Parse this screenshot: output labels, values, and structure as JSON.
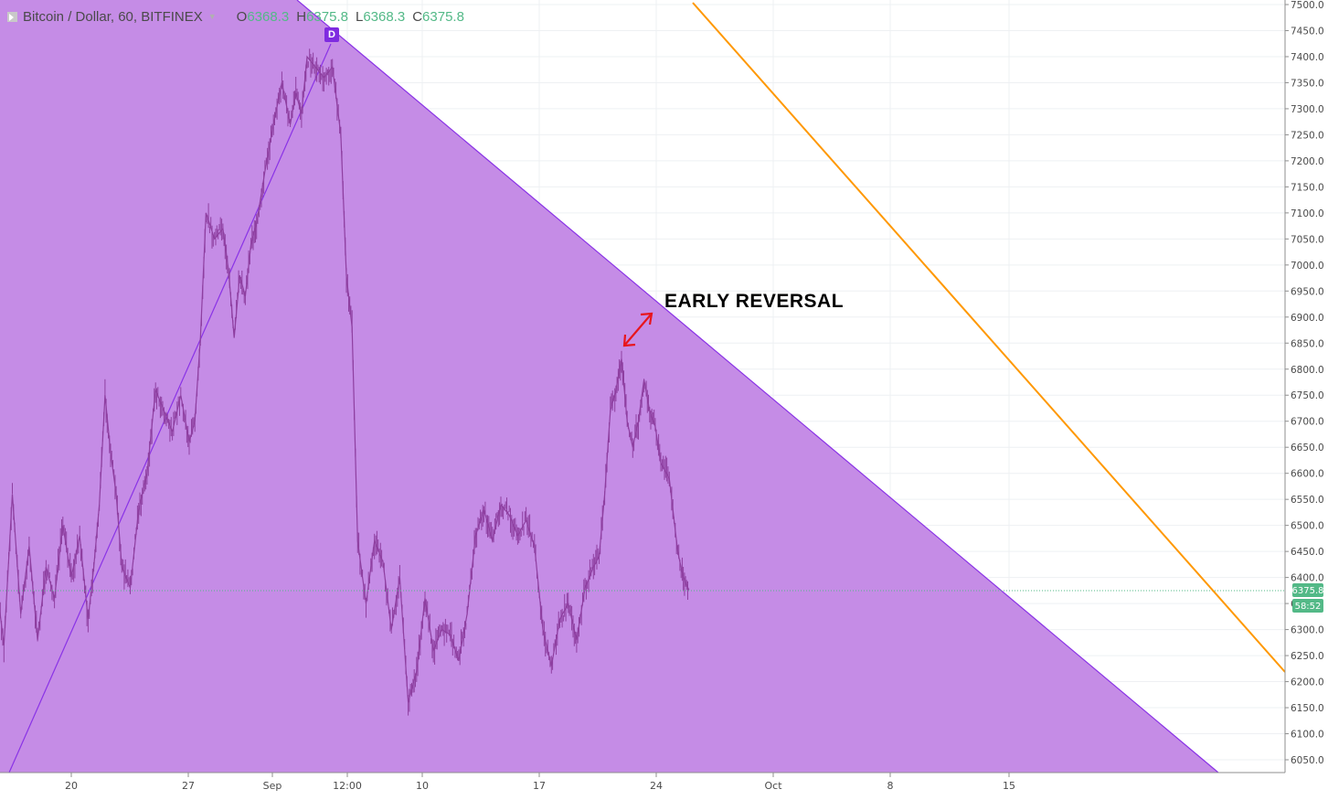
{
  "legend": {
    "symbol": "Bitcoin / Dollar, 60, BITFINEX",
    "open_key": "O",
    "open": "6368.3",
    "high_key": "H",
    "high": "6375.8",
    "low_key": "L",
    "low": "6368.3",
    "close_key": "C",
    "close": "6375.8"
  },
  "badge": "D",
  "annotation": "EARLY REVERSAL",
  "price_axis": {
    "min": 6050,
    "max": 7500,
    "step": 50,
    "labels": [
      "7500.0",
      "7450.0",
      "7400.0",
      "7350.0",
      "7300.0",
      "7250.0",
      "7200.0",
      "7150.0",
      "7100.0",
      "7050.0",
      "7000.0",
      "6950.0",
      "6900.0",
      "6850.0",
      "6800.0",
      "6750.0",
      "6700.0",
      "6650.0",
      "6600.0",
      "6550.0",
      "6500.0",
      "6450.0",
      "6400.0",
      "6350.0",
      "6300.0",
      "6250.0",
      "6200.0",
      "6150.0",
      "6100.0",
      "6050.0"
    ],
    "last_price": "6375.8",
    "countdown": "58:52"
  },
  "time_axis": {
    "labels": [
      "20",
      "27",
      "Sep",
      "12:00",
      "10",
      "17",
      "24",
      "Oct",
      "8",
      "15"
    ]
  },
  "colors": {
    "triangle_fill": "#c48ae6",
    "triangle_edge": "#8a33e6",
    "candle": "#8e3fa0",
    "orange_line": "#ff9800",
    "arrow": "#e8151c",
    "last_price_bg": "#53b987"
  },
  "chart_data": {
    "type": "line",
    "title": "Bitcoin / Dollar, 60, BITFINEX",
    "ylim": [
      6050,
      7500
    ],
    "series": [
      {
        "name": "Bitcoin / Dollar",
        "points": [
          [
            "Aug 15",
            6540
          ],
          [
            "Aug 16",
            6270
          ],
          [
            "Aug 16",
            6560
          ],
          [
            "Aug 17",
            6330
          ],
          [
            "Aug 17",
            6460
          ],
          [
            "Aug 18",
            6280
          ],
          [
            "Aug 18",
            6420
          ],
          [
            "Aug 19",
            6360
          ],
          [
            "Aug 19",
            6500
          ],
          [
            "Aug 20",
            6400
          ],
          [
            "Aug 20",
            6480
          ],
          [
            "Aug 21",
            6320
          ],
          [
            "Aug 21",
            6420
          ],
          [
            "Aug 21",
            6540
          ],
          [
            "Aug 22",
            6750
          ],
          [
            "Aug 22",
            6640
          ],
          [
            "Aug 22",
            6560
          ],
          [
            "Aug 23",
            6420
          ],
          [
            "Aug 23",
            6380
          ],
          [
            "Aug 24",
            6530
          ],
          [
            "Aug 24",
            6600
          ],
          [
            "Aug 25",
            6760
          ],
          [
            "Aug 25",
            6720
          ],
          [
            "Aug 26",
            6680
          ],
          [
            "Aug 26",
            6750
          ],
          [
            "Aug 27",
            6660
          ],
          [
            "Aug 27",
            6700
          ],
          [
            "Aug 27",
            6860
          ],
          [
            "Aug 28",
            7100
          ],
          [
            "Aug 28",
            7050
          ],
          [
            "Aug 29",
            7070
          ],
          [
            "Aug 29",
            6990
          ],
          [
            "Aug 29",
            6860
          ],
          [
            "Aug 30",
            6980
          ],
          [
            "Aug 30",
            6940
          ],
          [
            "Aug 30",
            7040
          ],
          [
            "Aug 31",
            7080
          ],
          [
            "Aug 31",
            7180
          ],
          [
            "Sep 01",
            7270
          ],
          [
            "Sep 01",
            7350
          ],
          [
            "Sep 02",
            7270
          ],
          [
            "Sep 02",
            7330
          ],
          [
            "Sep 02",
            7290
          ],
          [
            "Sep 03",
            7400
          ],
          [
            "Sep 04",
            7360
          ],
          [
            "Sep 04",
            7380
          ],
          [
            "Sep 05",
            7250
          ],
          [
            "Sep 05",
            6980
          ],
          [
            "Sep 05",
            6880
          ],
          [
            "Sep 06",
            6470
          ],
          [
            "Sep 06",
            6350
          ],
          [
            "Sep 07",
            6470
          ],
          [
            "Sep 07",
            6430
          ],
          [
            "Sep 08",
            6300
          ],
          [
            "Sep 08",
            6400
          ],
          [
            "Sep 09",
            6160
          ],
          [
            "Sep 09",
            6220
          ],
          [
            "Sep 10",
            6360
          ],
          [
            "Sep 10",
            6260
          ],
          [
            "Sep 11",
            6300
          ],
          [
            "Sep 11",
            6290
          ],
          [
            "Sep 12",
            6240
          ],
          [
            "Sep 12",
            6330
          ],
          [
            "Sep 13",
            6480
          ],
          [
            "Sep 13",
            6530
          ],
          [
            "Sep 14",
            6470
          ],
          [
            "Sep 14",
            6540
          ],
          [
            "Sep 15",
            6520
          ],
          [
            "Sep 15",
            6480
          ],
          [
            "Sep 16",
            6510
          ],
          [
            "Sep 16",
            6460
          ],
          [
            "Sep 17",
            6300
          ],
          [
            "Sep 17",
            6230
          ],
          [
            "Sep 18",
            6320
          ],
          [
            "Sep 18",
            6350
          ],
          [
            "Sep 19",
            6280
          ],
          [
            "Sep 19",
            6380
          ],
          [
            "Sep 20",
            6420
          ],
          [
            "Sep 20",
            6440
          ],
          [
            "Sep 20",
            6560
          ],
          [
            "Sep 21",
            6720
          ],
          [
            "Sep 21",
            6760
          ],
          [
            "Sep 21",
            6820
          ],
          [
            "Sep 22",
            6700
          ],
          [
            "Sep 22",
            6650
          ],
          [
            "Sep 22",
            6700
          ],
          [
            "Sep 23",
            6780
          ],
          [
            "Sep 23",
            6720
          ],
          [
            "Sep 23",
            6690
          ],
          [
            "Sep 24",
            6620
          ],
          [
            "Sep 24",
            6590
          ],
          [
            "Sep 25",
            6450
          ],
          [
            "Sep 25",
            6400
          ],
          [
            "Sep 25",
            6376
          ]
        ]
      }
    ],
    "drawings": [
      {
        "name": "descending trend line",
        "type": "line",
        "from": [
          "Sep 03",
          7420
        ],
        "to": [
          "Oct 19",
          6040
        ]
      },
      {
        "name": "ascending trend line",
        "type": "line",
        "from": [
          "Aug 16",
          6040
        ],
        "to": [
          "Sep 03",
          7420
        ]
      },
      {
        "name": "orange parallel line",
        "type": "line",
        "from": [
          "Sep 27",
          7500
        ],
        "to": [
          "Oct 21",
          6220
        ]
      },
      {
        "name": "early reversal arrow",
        "type": "arrow",
        "from": [
          "Sep 21",
          6840
        ],
        "to": [
          "Sep 23",
          6900
        ]
      }
    ]
  }
}
